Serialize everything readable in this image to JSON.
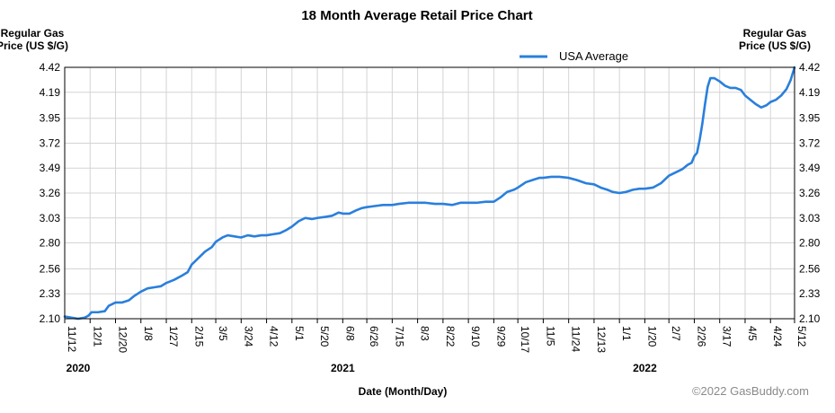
{
  "chart_data": {
    "type": "line",
    "title": "18 Month Average Retail Price Chart",
    "ylabel_left": [
      "Regular Gas",
      "Price (US $/G)"
    ],
    "ylabel_right": [
      "Regular Gas",
      "Price (US $/G)"
    ],
    "xlabel": "Date (Month/Day)",
    "ylim": [
      2.1,
      4.42
    ],
    "yticks": [
      "4.42",
      "4.19",
      "3.95",
      "3.72",
      "3.49",
      "3.26",
      "3.03",
      "2.80",
      "2.56",
      "2.33",
      "2.10"
    ],
    "xlim": [
      0,
      546
    ],
    "xticks": [
      {
        "label": "11/12",
        "day": 0
      },
      {
        "label": "12/1",
        "day": 19
      },
      {
        "label": "12/20",
        "day": 38
      },
      {
        "label": "1/8",
        "day": 57
      },
      {
        "label": "1/27",
        "day": 76
      },
      {
        "label": "2/15",
        "day": 95
      },
      {
        "label": "3/5",
        "day": 113
      },
      {
        "label": "3/24",
        "day": 132
      },
      {
        "label": "4/12",
        "day": 151
      },
      {
        "label": "5/1",
        "day": 170
      },
      {
        "label": "5/20",
        "day": 189
      },
      {
        "label": "6/8",
        "day": 208
      },
      {
        "label": "6/26",
        "day": 226
      },
      {
        "label": "7/15",
        "day": 245
      },
      {
        "label": "8/3",
        "day": 264
      },
      {
        "label": "8/22",
        "day": 283
      },
      {
        "label": "9/10",
        "day": 302
      },
      {
        "label": "9/29",
        "day": 321
      },
      {
        "label": "10/17",
        "day": 339
      },
      {
        "label": "11/5",
        "day": 358
      },
      {
        "label": "11/24",
        "day": 377
      },
      {
        "label": "12/13",
        "day": 396
      },
      {
        "label": "1/1",
        "day": 415
      },
      {
        "label": "1/20",
        "day": 434
      },
      {
        "label": "2/7",
        "day": 452
      },
      {
        "label": "2/26",
        "day": 471
      },
      {
        "label": "3/17",
        "day": 490
      },
      {
        "label": "4/5",
        "day": 509
      },
      {
        "label": "4/24",
        "day": 528
      },
      {
        "label": "5/12",
        "day": 546
      }
    ],
    "years": [
      {
        "label": "2020",
        "day": 0
      },
      {
        "label": "2021",
        "day": 208
      },
      {
        "label": "2022",
        "day": 434
      }
    ],
    "legend_position": "top-right",
    "grid": true,
    "series": [
      {
        "name": "USA Average",
        "color": "#2a7fdc",
        "points": [
          [
            0,
            2.12
          ],
          [
            5,
            2.11
          ],
          [
            10,
            2.1
          ],
          [
            15,
            2.11
          ],
          [
            18,
            2.13
          ],
          [
            20,
            2.16
          ],
          [
            25,
            2.16
          ],
          [
            30,
            2.17
          ],
          [
            33,
            2.22
          ],
          [
            38,
            2.25
          ],
          [
            43,
            2.25
          ],
          [
            48,
            2.27
          ],
          [
            52,
            2.31
          ],
          [
            57,
            2.35
          ],
          [
            62,
            2.38
          ],
          [
            67,
            2.39
          ],
          [
            72,
            2.4
          ],
          [
            76,
            2.43
          ],
          [
            82,
            2.46
          ],
          [
            88,
            2.5
          ],
          [
            92,
            2.53
          ],
          [
            95,
            2.6
          ],
          [
            100,
            2.66
          ],
          [
            105,
            2.72
          ],
          [
            110,
            2.76
          ],
          [
            113,
            2.81
          ],
          [
            118,
            2.85
          ],
          [
            122,
            2.87
          ],
          [
            127,
            2.86
          ],
          [
            132,
            2.85
          ],
          [
            137,
            2.87
          ],
          [
            142,
            2.86
          ],
          [
            147,
            2.87
          ],
          [
            151,
            2.87
          ],
          [
            156,
            2.88
          ],
          [
            161,
            2.89
          ],
          [
            166,
            2.92
          ],
          [
            170,
            2.95
          ],
          [
            175,
            3.0
          ],
          [
            180,
            3.03
          ],
          [
            185,
            3.02
          ],
          [
            189,
            3.03
          ],
          [
            195,
            3.04
          ],
          [
            200,
            3.05
          ],
          [
            205,
            3.08
          ],
          [
            208,
            3.07
          ],
          [
            213,
            3.07
          ],
          [
            218,
            3.1
          ],
          [
            222,
            3.12
          ],
          [
            226,
            3.13
          ],
          [
            232,
            3.14
          ],
          [
            238,
            3.15
          ],
          [
            245,
            3.15
          ],
          [
            250,
            3.16
          ],
          [
            257,
            3.17
          ],
          [
            264,
            3.17
          ],
          [
            270,
            3.17
          ],
          [
            277,
            3.16
          ],
          [
            283,
            3.16
          ],
          [
            290,
            3.15
          ],
          [
            296,
            3.17
          ],
          [
            302,
            3.17
          ],
          [
            308,
            3.17
          ],
          [
            315,
            3.18
          ],
          [
            321,
            3.18
          ],
          [
            326,
            3.22
          ],
          [
            331,
            3.27
          ],
          [
            336,
            3.29
          ],
          [
            339,
            3.31
          ],
          [
            345,
            3.36
          ],
          [
            350,
            3.38
          ],
          [
            355,
            3.4
          ],
          [
            358,
            3.4
          ],
          [
            364,
            3.41
          ],
          [
            370,
            3.41
          ],
          [
            377,
            3.4
          ],
          [
            383,
            3.38
          ],
          [
            390,
            3.35
          ],
          [
            396,
            3.34
          ],
          [
            401,
            3.31
          ],
          [
            406,
            3.29
          ],
          [
            410,
            3.27
          ],
          [
            415,
            3.26
          ],
          [
            420,
            3.27
          ],
          [
            425,
            3.29
          ],
          [
            430,
            3.3
          ],
          [
            434,
            3.3
          ],
          [
            440,
            3.31
          ],
          [
            446,
            3.35
          ],
          [
            452,
            3.42
          ],
          [
            457,
            3.45
          ],
          [
            462,
            3.48
          ],
          [
            466,
            3.52
          ],
          [
            469,
            3.54
          ],
          [
            471,
            3.6
          ],
          [
            473,
            3.63
          ],
          [
            475,
            3.75
          ],
          [
            477,
            3.9
          ],
          [
            479,
            4.08
          ],
          [
            481,
            4.24
          ],
          [
            483,
            4.32
          ],
          [
            486,
            4.32
          ],
          [
            490,
            4.29
          ],
          [
            494,
            4.25
          ],
          [
            498,
            4.23
          ],
          [
            502,
            4.23
          ],
          [
            506,
            4.21
          ],
          [
            509,
            4.16
          ],
          [
            513,
            4.12
          ],
          [
            517,
            4.08
          ],
          [
            521,
            4.05
          ],
          [
            525,
            4.07
          ],
          [
            528,
            4.1
          ],
          [
            532,
            4.12
          ],
          [
            536,
            4.16
          ],
          [
            540,
            4.22
          ],
          [
            543,
            4.3
          ],
          [
            546,
            4.42
          ]
        ]
      }
    ],
    "copyright": "©2022 GasBuddy.com"
  }
}
